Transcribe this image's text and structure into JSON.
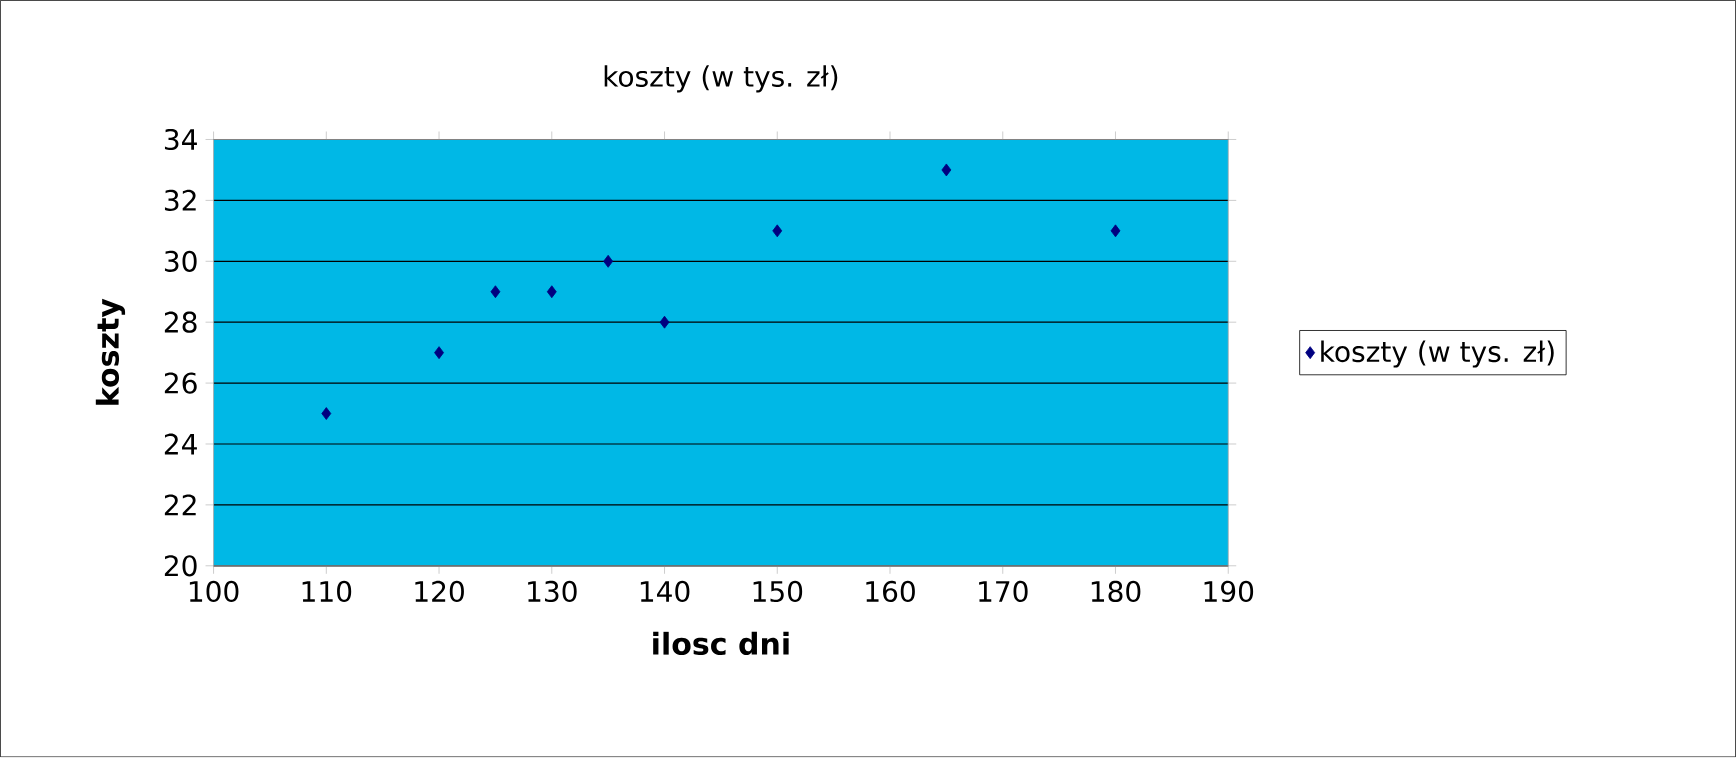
{
  "chart_data": {
    "type": "scatter",
    "title": "koszty (w tys. zł)",
    "xlabel": "ilosc dni",
    "ylabel": "koszty",
    "x": [
      110,
      120,
      125,
      130,
      135,
      140,
      150,
      165,
      180
    ],
    "series": [
      {
        "name": "koszty (w tys. zł)",
        "color": "#000080",
        "values": [
          25,
          27,
          29,
          29,
          30,
          28,
          31,
          33,
          31
        ]
      }
    ],
    "xlim": [
      100,
      190
    ],
    "xticks": [
      100,
      110,
      120,
      130,
      140,
      150,
      160,
      170,
      180,
      190
    ],
    "ylim": [
      20,
      34
    ],
    "yticks": [
      20,
      22,
      24,
      26,
      28,
      30,
      32,
      34
    ],
    "grid": "y",
    "legend": "right",
    "marker": "diamond"
  }
}
